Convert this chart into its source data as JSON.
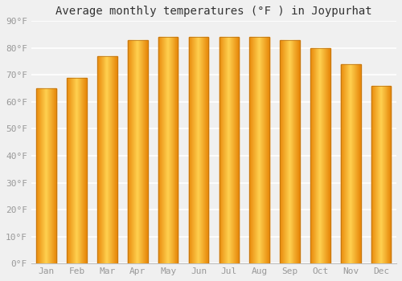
{
  "months": [
    "Jan",
    "Feb",
    "Mar",
    "Apr",
    "May",
    "Jun",
    "Jul",
    "Aug",
    "Sep",
    "Oct",
    "Nov",
    "Dec"
  ],
  "values": [
    65,
    69,
    77,
    83,
    84,
    84,
    84,
    84,
    83,
    80,
    74,
    66
  ],
  "bar_color_center": "#FFD050",
  "bar_color_edge": "#E8880A",
  "title": "Average monthly temperatures (°F ) in Joypurhat",
  "ytick_labels": [
    "0°F",
    "10°F",
    "20°F",
    "30°F",
    "40°F",
    "50°F",
    "60°F",
    "70°F",
    "80°F",
    "90°F"
  ],
  "ytick_values": [
    0,
    10,
    20,
    30,
    40,
    50,
    60,
    70,
    80,
    90
  ],
  "ylim": [
    0,
    90
  ],
  "background_color": "#f0f0f0",
  "plot_bg_color": "#f0f0f0",
  "grid_color": "#ffffff",
  "title_fontsize": 10,
  "tick_fontsize": 8,
  "bar_width": 0.65
}
